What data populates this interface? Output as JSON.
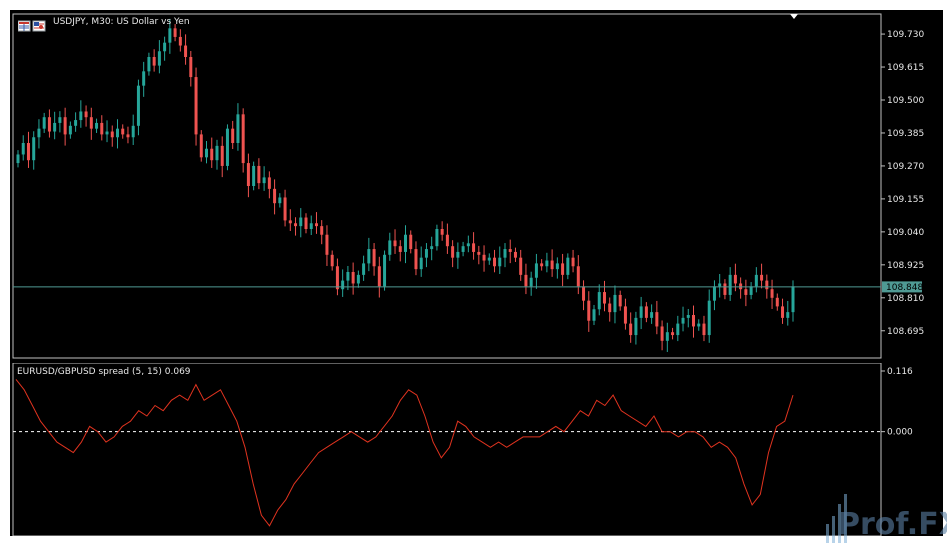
{
  "chart_header": {
    "symbol": "USDJPY",
    "timeframe": "M30",
    "description": "US Dollar vs Yen",
    "title_text": "USDJPY, M30:  US Dollar vs Yen"
  },
  "indicator_header": {
    "title_text": "EURUSD/GBPUSD spread (5, 15) 0.069"
  },
  "current_price_label": "108.848",
  "watermark_text": "Prof.FX",
  "colors": {
    "background": "#000000",
    "bullish": "#26a69a",
    "bearish": "#ef5350",
    "grid_border": "#c0c0c0",
    "price_line": "#4f9a94",
    "indicator_line": "#e0331f",
    "zero_line": "#ffffff",
    "text": "#e8e8e8"
  },
  "chart_data": [
    {
      "type": "candlestick",
      "title": "USDJPY, M30:  US Dollar vs Yen",
      "ylim": [
        108.6,
        109.8
      ],
      "y_ticks": [
        "109.730",
        "109.615",
        "109.500",
        "109.385",
        "109.270",
        "109.155",
        "109.040",
        "108.925",
        "108.810",
        "108.695"
      ],
      "current_price": 108.848,
      "close_series": [
        109.31,
        109.35,
        109.29,
        109.37,
        109.4,
        109.44,
        109.39,
        109.42,
        109.44,
        109.38,
        109.41,
        109.43,
        109.46,
        109.44,
        109.4,
        109.42,
        109.38,
        109.39,
        109.37,
        109.4,
        109.38,
        109.37,
        109.41,
        109.55,
        109.6,
        109.65,
        109.62,
        109.67,
        109.7,
        109.75,
        109.72,
        109.69,
        109.65,
        109.58,
        109.38,
        109.3,
        109.33,
        109.29,
        109.34,
        109.27,
        109.4,
        109.35,
        109.45,
        109.28,
        109.2,
        109.27,
        109.21,
        109.23,
        109.19,
        109.14,
        109.16,
        109.08,
        109.07,
        109.06,
        109.09,
        109.05,
        109.07,
        109.06,
        109.03,
        108.96,
        108.92,
        108.84,
        108.87,
        108.9,
        108.86,
        108.89,
        108.93,
        108.98,
        108.92,
        108.85,
        108.96,
        109.01,
        108.99,
        108.97,
        109.03,
        108.98,
        108.91,
        108.95,
        108.98,
        108.99,
        109.05,
        109.03,
        108.99,
        108.95,
        108.97,
        108.99,
        109.0,
        108.97,
        108.96,
        108.94,
        108.95,
        108.92,
        108.95,
        108.98,
        108.97,
        108.95,
        108.89,
        108.85,
        108.88,
        108.93,
        108.92,
        108.94,
        108.91,
        108.93,
        108.89,
        108.95,
        108.92,
        108.85,
        108.8,
        108.73,
        108.77,
        108.83,
        108.79,
        108.76,
        108.82,
        108.78,
        108.72,
        108.68,
        108.74,
        108.78,
        108.74,
        108.76,
        108.71,
        108.66,
        108.69,
        108.68,
        108.72,
        108.74,
        108.75,
        108.71,
        108.72,
        108.68,
        108.8,
        108.85,
        108.86,
        108.82,
        108.89,
        108.86,
        108.84,
        108.82,
        108.85,
        108.89,
        108.87,
        108.84,
        108.81,
        108.78,
        108.74,
        108.76,
        108.85
      ]
    },
    {
      "type": "line",
      "title": "EURUSD/GBPUSD spread (5, 15) 0.069",
      "ylim": [
        -0.19,
        0.116
      ],
      "y_ticks": [
        "0.116",
        "0.000"
      ],
      "last_value": 0.069,
      "values": [
        0.1,
        0.08,
        0.05,
        0.02,
        0.0,
        -0.02,
        -0.03,
        -0.04,
        -0.02,
        0.01,
        0.0,
        -0.02,
        -0.01,
        0.01,
        0.02,
        0.04,
        0.03,
        0.05,
        0.04,
        0.06,
        0.07,
        0.06,
        0.09,
        0.06,
        0.07,
        0.08,
        0.05,
        0.02,
        -0.03,
        -0.1,
        -0.16,
        -0.18,
        -0.15,
        -0.13,
        -0.1,
        -0.08,
        -0.06,
        -0.04,
        -0.03,
        -0.02,
        -0.01,
        0.0,
        -0.01,
        -0.02,
        -0.01,
        0.01,
        0.03,
        0.06,
        0.08,
        0.07,
        0.03,
        -0.02,
        -0.05,
        -0.03,
        0.02,
        0.01,
        -0.01,
        -0.02,
        -0.03,
        -0.02,
        -0.03,
        -0.02,
        -0.01,
        -0.01,
        -0.01,
        0.0,
        0.01,
        0.0,
        0.02,
        0.04,
        0.03,
        0.06,
        0.05,
        0.07,
        0.04,
        0.03,
        0.02,
        0.01,
        0.03,
        0.0,
        0.0,
        -0.01,
        0.0,
        0.0,
        -0.01,
        -0.03,
        -0.02,
        -0.03,
        -0.05,
        -0.1,
        -0.14,
        -0.12,
        -0.04,
        0.01,
        0.02,
        0.07
      ]
    }
  ]
}
